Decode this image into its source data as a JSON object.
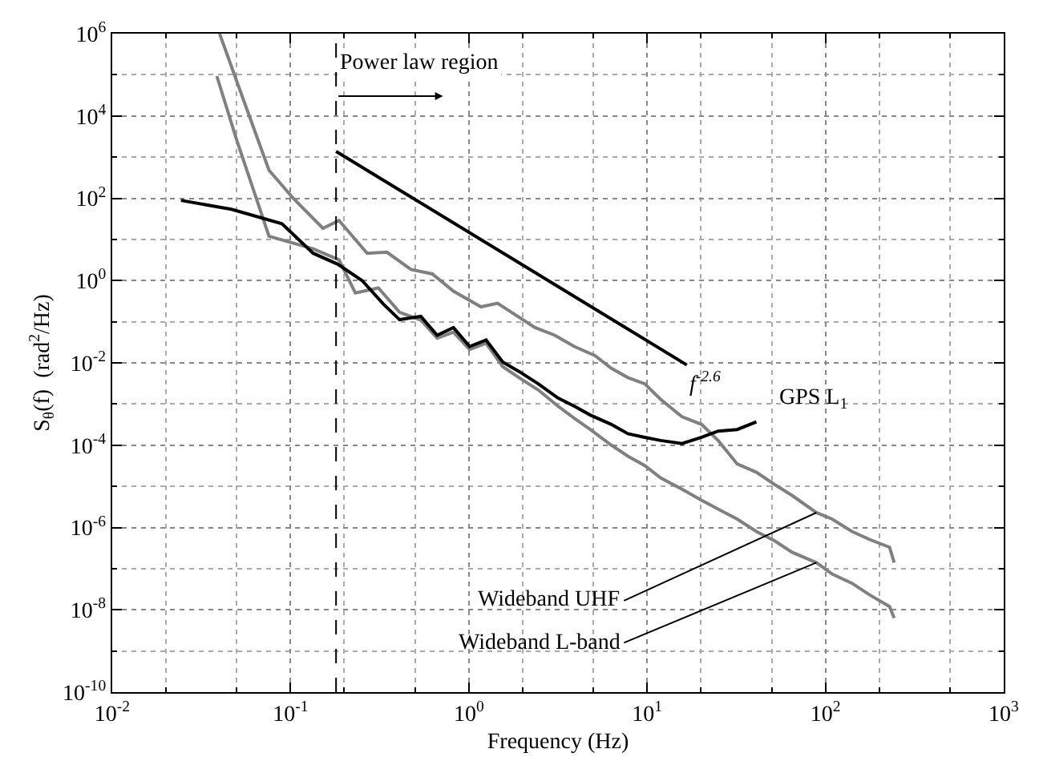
{
  "chart_data": {
    "type": "line",
    "xlabel": "Frequency (Hz)",
    "ylabel": "S$_{θ}$(f)  (rad$^{2}$/Hz)",
    "log": "xy",
    "grid": true,
    "legend": false,
    "xlim": [
      0.01,
      1000
    ],
    "ylim": [
      1e-10,
      1000000.0
    ],
    "xticks": [
      {
        "value": 0.01,
        "label": "10$^{-2}$"
      },
      {
        "value": 0.1,
        "label": "10$^{-1}$"
      },
      {
        "value": 1,
        "label": "10$^{0}$"
      },
      {
        "value": 10,
        "label": "10$^{1}$"
      },
      {
        "value": 100,
        "label": "10$^{2}$"
      },
      {
        "value": 1000,
        "label": "10$^{3}$"
      }
    ],
    "yticks": [
      {
        "value": 1e-10,
        "label": "10$^{-10}$"
      },
      {
        "value": 1e-08,
        "label": "10$^{-8}$"
      },
      {
        "value": 1e-06,
        "label": "10$^{-6}$"
      },
      {
        "value": 0.0001,
        "label": "10$^{-4}$"
      },
      {
        "value": 0.01,
        "label": "10$^{-2}$"
      },
      {
        "value": 1,
        "label": "10$^{0}$"
      },
      {
        "value": 100,
        "label": "10$^{2}$"
      },
      {
        "value": 10000,
        "label": "10$^{4}$"
      },
      {
        "value": 1000000,
        "label": "10$^{6}$"
      }
    ],
    "series": [
      {
        "name": "Wideband UHF",
        "color": "#808080",
        "x": [
          0.04,
          0.0552,
          0.0757,
          0.104,
          0.152,
          0.187,
          0.269,
          0.347,
          0.474,
          0.624,
          0.82,
          1.17,
          1.45,
          2.35,
          3.03,
          3.9,
          5.1,
          6.3,
          7.8,
          9.7,
          11.9,
          15.7,
          20.2,
          25,
          32,
          41,
          52,
          65,
          89,
          109,
          141,
          177,
          229,
          243
        ],
        "values": [
          1000000.0,
          21000.0,
          480,
          98,
          18.6,
          29,
          4.6,
          4.9,
          1.86,
          1.45,
          0.55,
          0.23,
          0.28,
          0.072,
          0.047,
          0.025,
          0.015,
          0.0074,
          0.0044,
          0.0031,
          0.0013,
          0.00049,
          0.00032,
          0.00013,
          3.5e-05,
          2.2e-05,
          1.1e-05,
          6e-06,
          2.3e-06,
          1.6e-06,
          8e-07,
          5.1e-07,
          3.3e-07,
          1.4e-07
        ]
      },
      {
        "name": "Wideband L-band",
        "color": "#808080",
        "x": [
          0.0386,
          0.0497,
          0.0757,
          0.134,
          0.187,
          0.231,
          0.311,
          0.409,
          0.538,
          0.664,
          0.82,
          1.01,
          1.25,
          1.55,
          1.91,
          2.45,
          3.16,
          3.9,
          4.8,
          6.3,
          7.8,
          9.7,
          11.9,
          15.7,
          20.2,
          25,
          32,
          41,
          52,
          65,
          89,
          109,
          141,
          177,
          229,
          243
        ],
        "values": [
          93000.0,
          2750,
          12,
          5.9,
          3.2,
          0.5,
          0.66,
          0.17,
          0.11,
          0.04,
          0.056,
          0.021,
          0.03,
          0.0081,
          0.0044,
          0.0022,
          0.00089,
          0.00045,
          0.00024,
          0.0001,
          5.4e-05,
          3.2e-05,
          1.6e-05,
          8.5e-06,
          4.6e-06,
          2.8e-06,
          1.6e-06,
          8e-07,
          4.7e-07,
          2.5e-07,
          1.4e-07,
          7.4e-08,
          4.4e-08,
          2.3e-08,
          1.2e-08,
          6.3e-09
        ]
      },
      {
        "name": "GPS L$_{1}$",
        "color": "#000000",
        "x": [
          0.0243,
          0.0466,
          0.0895,
          0.134,
          0.184,
          0.252,
          0.331,
          0.409,
          0.538,
          0.664,
          0.82,
          1.01,
          1.25,
          1.55,
          1.91,
          2.45,
          3.16,
          3.9,
          4.8,
          6.3,
          7.8,
          9.7,
          11.9,
          15.7,
          20.2,
          25,
          32,
          41
        ],
        "values": [
          89,
          54,
          24,
          4.6,
          2.5,
          1.0,
          0.27,
          0.112,
          0.135,
          0.047,
          0.072,
          0.025,
          0.036,
          0.0105,
          0.0062,
          0.0031,
          0.0014,
          0.00089,
          0.00054,
          0.00032,
          0.00019,
          0.000155,
          0.00013,
          0.00011,
          0.000155,
          0.00022,
          0.00024,
          0.00037
        ]
      },
      {
        "color": "#000000",
        "x": [
          0.18,
          16.7
        ],
        "values": [
          1380,
          0.0089
        ]
      }
    ],
    "ref_lines": [
      {
        "axis": "x",
        "value": 0.18,
        "label": "Power law region",
        "color": "#000000",
        "line_style": "dashed"
      }
    ],
    "annotations": [
      {
        "text": "f$^{-2.6}$",
        "x": 16.7,
        "y": 0.0089
      }
    ]
  }
}
